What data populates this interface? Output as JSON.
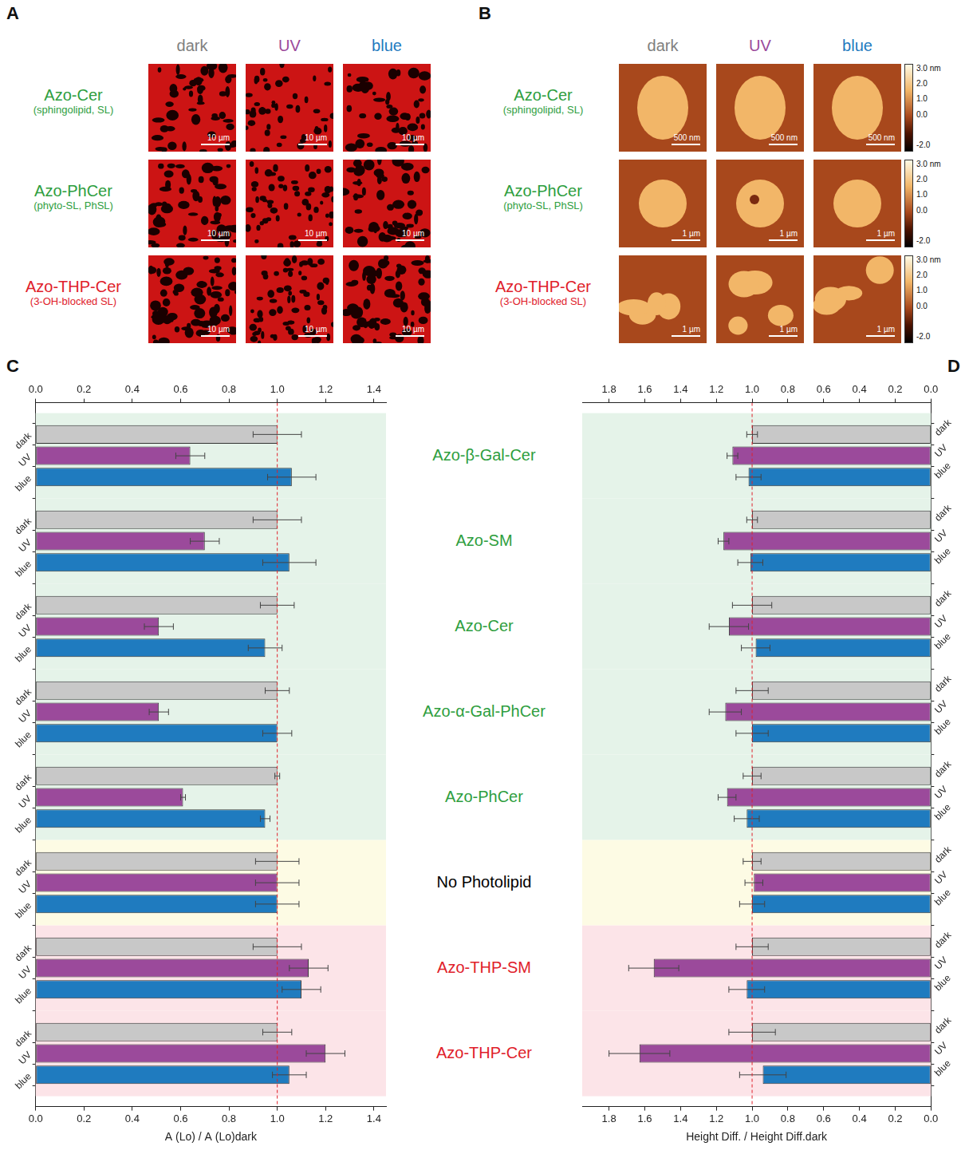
{
  "figure": {
    "panels": [
      {
        "letter": "A",
        "columns": [
          {
            "label": "dark",
            "color": "#808080"
          },
          {
            "label": "UV",
            "color": "#9b4a9b"
          },
          {
            "label": "blue",
            "color": "#1f7bbf"
          }
        ],
        "rows": [
          {
            "name": "Azo-Cer",
            "subtitle": "(sphingolipid, SL)",
            "color": "#2e9e3e",
            "scale_bar": "10 µm"
          },
          {
            "name": "Azo-PhCer",
            "subtitle": "(phyto-SL, PhSL)",
            "color": "#2e9e3e",
            "scale_bar": "10 µm"
          },
          {
            "name": "Azo-THP-Cer",
            "subtitle": "(3-OH-blocked SL)",
            "color": "#e0202a",
            "scale_bar": "10 µm"
          }
        ]
      },
      {
        "letter": "B",
        "columns": [
          {
            "label": "dark",
            "color": "#808080"
          },
          {
            "label": "UV",
            "color": "#9b4a9b"
          },
          {
            "label": "blue",
            "color": "#1f7bbf"
          }
        ],
        "rows": [
          {
            "name": "Azo-Cer",
            "subtitle": "(sphingolipid, SL)",
            "color": "#2e9e3e",
            "scale_bar": "500 nm"
          },
          {
            "name": "Azo-PhCer",
            "subtitle": "(phyto-SL, PhSL)",
            "color": "#2e9e3e",
            "scale_bar": "1 µm"
          },
          {
            "name": "Azo-THP-Cer",
            "subtitle": "(3-OH-blocked SL)",
            "color": "#e0202a",
            "scale_bar": "1 µm"
          }
        ],
        "colorbar": {
          "range": [
            -2.4,
            3.3
          ],
          "ticks": [
            {
              "value": 3,
              "label": "3.0 nm"
            },
            {
              "value": 2,
              "label": "2.0"
            },
            {
              "value": 1,
              "label": "1.0"
            },
            {
              "value": 0,
              "label": "0.0"
            },
            {
              "value": -2,
              "label": "-2.0"
            }
          ]
        }
      }
    ]
  },
  "chart_data": [
    {
      "letter": "C",
      "type": "bar",
      "orientation": "horizontal",
      "grid": false,
      "categories": [
        "Azo-β-Gal-Cer",
        "Azo-SM",
        "Azo-Cer",
        "Azo-α-Gal-PhCer",
        "Azo-PhCer",
        "No Photolipid",
        "Azo-THP-SM",
        "Azo-THP-Cer"
      ],
      "category_colors": [
        "#2e9e3e",
        "#2e9e3e",
        "#2e9e3e",
        "#2e9e3e",
        "#2e9e3e",
        "#000000",
        "#e0202a",
        "#e0202a"
      ],
      "series": [
        {
          "name": "dark",
          "color": "#c8c8c8",
          "values": [
            1.0,
            1.0,
            1.0,
            1.0,
            1.0,
            1.0,
            1.0,
            1.0
          ],
          "errors": [
            0.1,
            0.1,
            0.07,
            0.05,
            0.01,
            0.09,
            0.1,
            0.06
          ]
        },
        {
          "name": "UV",
          "color": "#9b4a9b",
          "values": [
            0.64,
            0.7,
            0.51,
            0.51,
            0.61,
            1.0,
            1.13,
            1.2
          ],
          "errors": [
            0.06,
            0.06,
            0.06,
            0.04,
            0.01,
            0.09,
            0.08,
            0.08
          ]
        },
        {
          "name": "blue",
          "color": "#1f7bbf",
          "values": [
            1.06,
            1.05,
            0.95,
            1.0,
            0.95,
            1.0,
            1.1,
            1.05
          ],
          "errors": [
            0.1,
            0.11,
            0.07,
            0.06,
            0.02,
            0.09,
            0.08,
            0.07
          ]
        }
      ],
      "x_label": "A (Lo) / A (Lo)dark",
      "xlim": [
        0,
        1.45
      ],
      "xticks": [
        {
          "value": 0,
          "label": "0.0"
        },
        {
          "value": 0.2,
          "label": "0.2"
        },
        {
          "value": 0.4,
          "label": "0.4"
        },
        {
          "value": 0.6,
          "label": "0.6"
        },
        {
          "value": 0.8,
          "label": "0.8"
        },
        {
          "value": 1,
          "label": "1.0"
        },
        {
          "value": 1.2,
          "label": "1.2"
        },
        {
          "value": 1.4,
          "label": "1.4"
        }
      ],
      "reference_line": 1
    },
    {
      "letter": "D",
      "type": "bar",
      "orientation": "horizontal",
      "grid": false,
      "series": [
        {
          "name": "dark",
          "color": "#c8c8c8",
          "values": [
            1.0,
            1.0,
            1.0,
            1.0,
            1.0,
            1.0,
            1.0,
            1.0
          ],
          "errors": [
            0.03,
            0.03,
            0.11,
            0.09,
            0.05,
            0.05,
            0.09,
            0.13
          ]
        },
        {
          "name": "UV",
          "color": "#9b4a9b",
          "values": [
            1.11,
            1.16,
            1.13,
            1.15,
            1.14,
            0.99,
            1.55,
            1.63
          ],
          "errors": [
            0.03,
            0.03,
            0.11,
            0.09,
            0.05,
            0.05,
            0.14,
            0.17
          ]
        },
        {
          "name": "blue",
          "color": "#1f7bbf",
          "values": [
            1.02,
            1.01,
            0.98,
            1.0,
            1.03,
            1.0,
            1.03,
            0.94
          ],
          "errors": [
            0.07,
            0.07,
            0.08,
            0.09,
            0.07,
            0.07,
            0.1,
            0.13
          ]
        }
      ],
      "x_label": "Height Diff. / Height Diff.dark",
      "xlim": [
        1.95,
        0
      ],
      "xticks": [
        {
          "value": 1.8,
          "label": "1.8"
        },
        {
          "value": 1.6,
          "label": "1.6"
        },
        {
          "value": 1.4,
          "label": "1.4"
        },
        {
          "value": 1.2,
          "label": "1.2"
        },
        {
          "value": 1,
          "label": "1.0"
        },
        {
          "value": 0.8,
          "label": "0.8"
        },
        {
          "value": 0.6,
          "label": "0.6"
        },
        {
          "value": 0.4,
          "label": "0.4"
        },
        {
          "value": 0.2,
          "label": "0.2"
        },
        {
          "value": 0,
          "label": "0.0"
        }
      ],
      "reference_line": 1
    }
  ]
}
